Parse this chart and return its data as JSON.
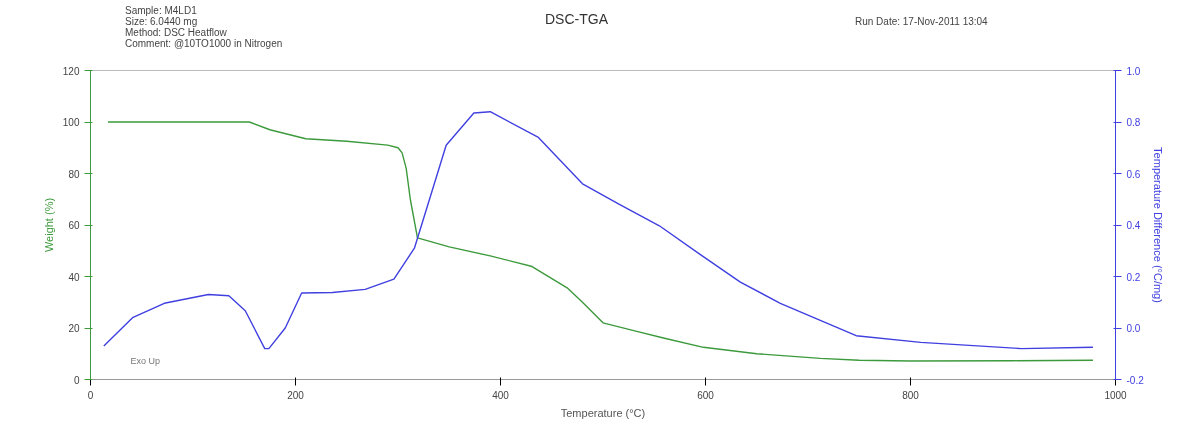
{
  "chart_data": {
    "type": "line",
    "title": "DSC-TGA",
    "xlabel": "Temperature (°C)",
    "ylabel": "Weight (%)",
    "y2label": "Temperature Difference (°C/mg)",
    "annotations": [
      "Sample: M4LD1",
      "Size:  6.0440 mg",
      "Method: DSC Heatflow",
      "Comment: @10TO1000 in Nitrogen",
      "Run Date: 17-Nov-2011 13:04",
      "Exo Up"
    ],
    "xlim": [
      0,
      1000
    ],
    "xticks": [
      0,
      200,
      400,
      600,
      800,
      1000
    ],
    "ylim": [
      0,
      120
    ],
    "yticks": [
      0,
      20,
      40,
      60,
      80,
      100,
      120
    ],
    "y2lim": [
      -0.2,
      1.0
    ],
    "y2ticks": [
      {
        "value": -0.2,
        "label": "-0.2"
      },
      {
        "value": 0.0,
        "label": "0.0"
      },
      {
        "value": 0.2,
        "label": "0.2"
      },
      {
        "value": 0.4,
        "label": "0.4"
      },
      {
        "value": 0.6,
        "label": "0.6"
      },
      {
        "value": 0.8,
        "label": "0.8"
      },
      {
        "value": 1.0,
        "label": "1.0"
      }
    ],
    "grid": false,
    "line_style": "solid",
    "series": [
      {
        "color": "#3c9a3c",
        "x": [
          17,
          155,
          175,
          210,
          250,
          290,
          300,
          304,
          308,
          312,
          319,
          350,
          390,
          430,
          465,
          480,
          500,
          530,
          560,
          598,
          650,
          712,
          750,
          800,
          900,
          978
        ],
        "values": [
          100,
          100,
          97,
          93.5,
          92.5,
          91,
          90,
          88,
          82,
          70,
          55,
          51.5,
          48,
          44,
          35.6,
          30,
          22,
          19,
          16,
          12.5,
          10,
          8.2,
          7.5,
          7.2,
          7.3,
          7.5
        ]
      },
      {
        "color": "#4040e0",
        "axis": "y2",
        "x": [
          13,
          41,
          72,
          115,
          135,
          151,
          170,
          174,
          190,
          206,
          236,
          268,
          296,
          316,
          347,
          374,
          390,
          437,
          480,
          516,
          555,
          594,
          634,
          673,
          747,
          810,
          908,
          978
        ],
        "values": [
          -0.07,
          0.04,
          0.096,
          0.13,
          0.125,
          0.067,
          -0.08,
          -0.08,
          0.0,
          0.136,
          0.138,
          0.15,
          0.19,
          0.31,
          0.71,
          0.835,
          0.84,
          0.74,
          0.56,
          0.48,
          0.397,
          0.288,
          0.178,
          0.096,
          -0.03,
          -0.056,
          -0.08,
          -0.075
        ]
      }
    ]
  }
}
